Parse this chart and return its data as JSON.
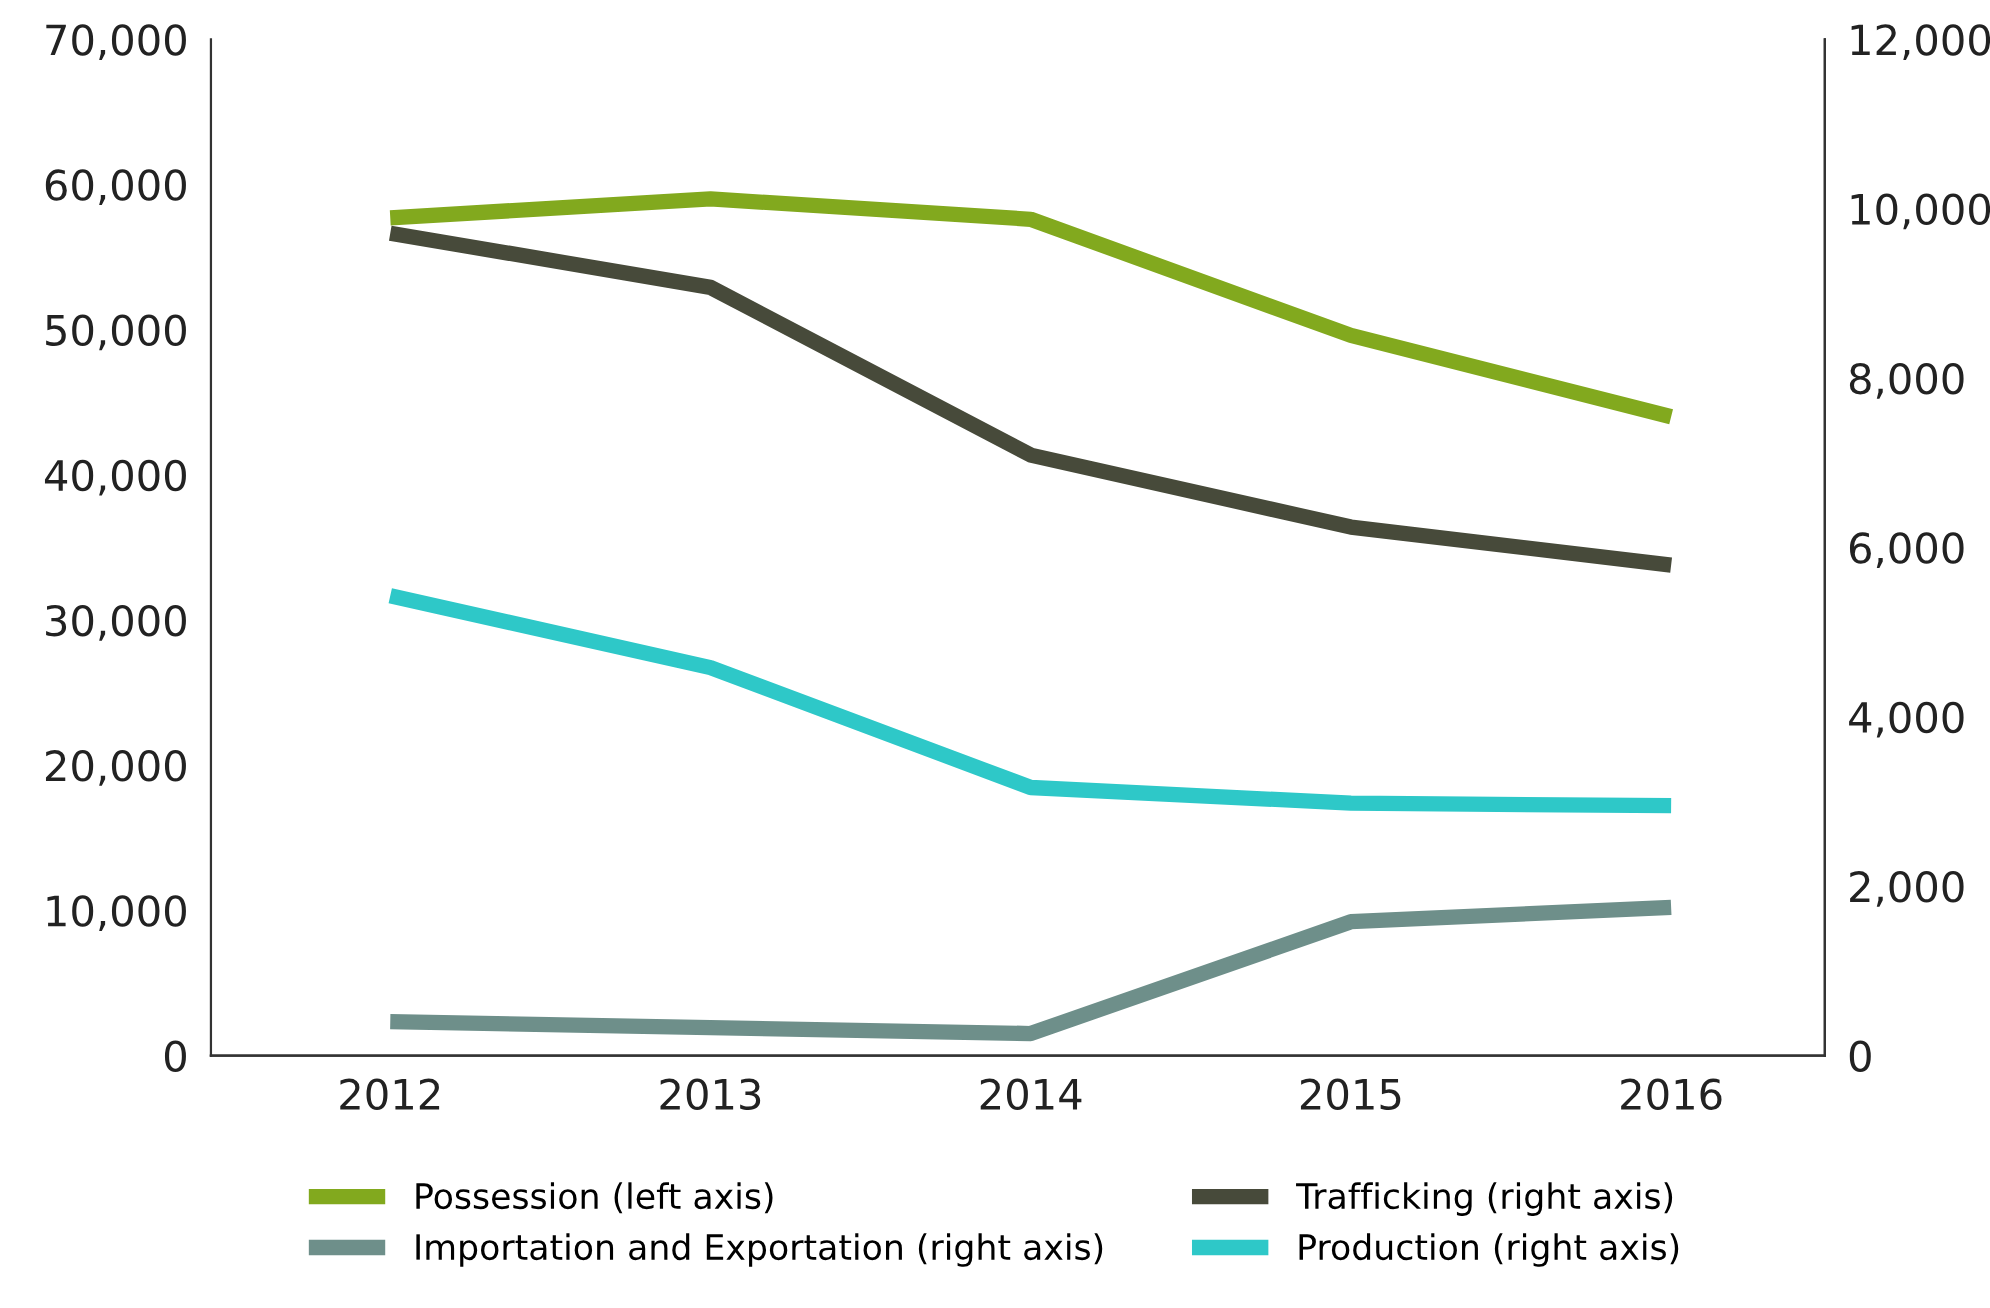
{
  "chart_data": {
    "type": "line",
    "categories": [
      "2012",
      "2013",
      "2014",
      "2015",
      "2016"
    ],
    "series": [
      {
        "name": "Possession (left axis)",
        "color": "#82a91e",
        "values": [
          57700,
          59000,
          57600,
          49600,
          44000
        ]
      },
      {
        "name": "Trafficking (right axis)",
        "color": "#474a3a",
        "axis": "y2",
        "values": [
          9710,
          9070,
          7090,
          6240,
          5790
        ]
      },
      {
        "name": "Importation and Exportation (right axis)",
        "color": "#6e8f8a",
        "axis": "y2",
        "values": [
          400,
          330,
          260,
          1580,
          1750
        ]
      },
      {
        "name": "Production (right axis)",
        "color": "#2ec8c8",
        "axis": "y2",
        "values": [
          5430,
          4580,
          3165,
          2980,
          2950
        ]
      }
    ],
    "ylim": [
      0,
      70000
    ],
    "yticks": [
      {
        "value": 0,
        "label": "0"
      },
      {
        "value": 10000,
        "label": "10,000"
      },
      {
        "value": 20000,
        "label": "20,000"
      },
      {
        "value": 30000,
        "label": "30,000"
      },
      {
        "value": 40000,
        "label": "40,000"
      },
      {
        "value": 50000,
        "label": "50,000"
      },
      {
        "value": 60000,
        "label": "60,000"
      },
      {
        "value": 70000,
        "label": "70,000"
      }
    ],
    "y2lim": [
      0,
      12000
    ],
    "y2ticks": [
      {
        "value": 0,
        "label": "0"
      },
      {
        "value": 2000,
        "label": "2,000"
      },
      {
        "value": 4000,
        "label": "4,000"
      },
      {
        "value": 6000,
        "label": "6,000"
      },
      {
        "value": 8000,
        "label": "8,000"
      },
      {
        "value": 10000,
        "label": "10,000"
      },
      {
        "value": 12000,
        "label": "12,000"
      }
    ],
    "grid": false,
    "legend": "bottom",
    "marker": "none",
    "line_style": "solid"
  }
}
